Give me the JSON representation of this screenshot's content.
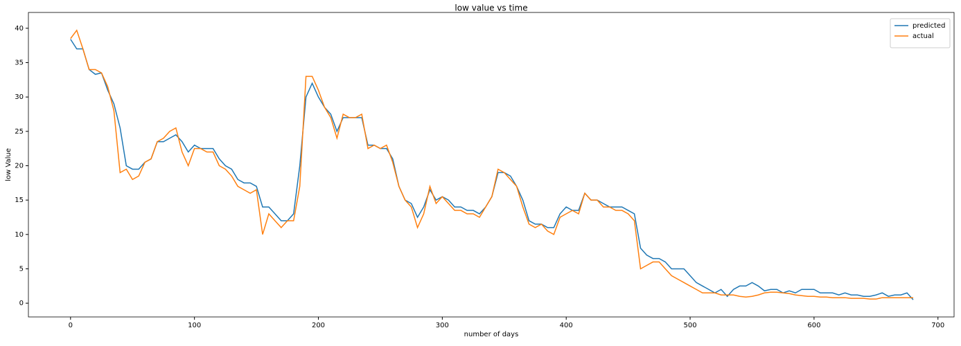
{
  "chart_data": {
    "type": "line",
    "title": "low value vs time",
    "x_label": "number of days",
    "y_label": "low Value",
    "x": [
      0,
      5,
      10,
      15,
      20,
      25,
      30,
      35,
      40,
      45,
      50,
      55,
      60,
      65,
      70,
      75,
      80,
      85,
      90,
      95,
      100,
      105,
      110,
      115,
      120,
      125,
      130,
      135,
      140,
      145,
      150,
      155,
      160,
      165,
      170,
      175,
      180,
      185,
      190,
      195,
      200,
      205,
      210,
      215,
      220,
      225,
      230,
      235,
      240,
      245,
      250,
      255,
      260,
      265,
      270,
      275,
      280,
      285,
      290,
      295,
      300,
      305,
      310,
      315,
      320,
      325,
      330,
      335,
      340,
      345,
      350,
      355,
      360,
      365,
      370,
      375,
      380,
      385,
      390,
      395,
      400,
      405,
      410,
      415,
      420,
      425,
      430,
      435,
      440,
      445,
      450,
      455,
      460,
      465,
      470,
      475,
      480,
      485,
      490,
      495,
      500,
      505,
      510,
      515,
      520,
      525,
      530,
      535,
      540,
      545,
      550,
      555,
      560,
      565,
      570,
      575,
      580,
      585,
      590,
      595,
      600,
      605,
      610,
      615,
      620,
      625,
      630,
      635,
      640,
      645,
      650,
      655,
      660,
      665,
      670,
      675,
      680
    ],
    "series": [
      {
        "name": "predicted",
        "color": "#1f77b4",
        "values": [
          38.4,
          37,
          37,
          34,
          33.3,
          33.5,
          31,
          29,
          25.5,
          20,
          19.5,
          19.5,
          20.5,
          21,
          23.5,
          23.5,
          24,
          24.5,
          23.5,
          22,
          23,
          22.5,
          22.5,
          22.5,
          21,
          20,
          19.5,
          18,
          17.5,
          17.5,
          17,
          14,
          14,
          13,
          12,
          12,
          13,
          20,
          30,
          32,
          30,
          28.5,
          27.5,
          25,
          27,
          27,
          27,
          27,
          23,
          23,
          22.5,
          22.5,
          21,
          17,
          15,
          14.5,
          12.5,
          14,
          16.5,
          15,
          15.5,
          15,
          14,
          14,
          13.5,
          13.5,
          13,
          14,
          15.5,
          19,
          19,
          18.5,
          17,
          15,
          12,
          11.5,
          11.5,
          11,
          11,
          13,
          14,
          13.5,
          13.5,
          16,
          15,
          15,
          14.5,
          14,
          14,
          14,
          13.5,
          13,
          8,
          7,
          6.5,
          6.5,
          6,
          5,
          5,
          5,
          4,
          3,
          2.5,
          2,
          1.5,
          2,
          1,
          2,
          2.5,
          2.5,
          3,
          2.5,
          1.8,
          2,
          2,
          1.5,
          1.8,
          1.5,
          2,
          2,
          2,
          1.5,
          1.5,
          1.5,
          1.2,
          1.5,
          1.2,
          1.2,
          1,
          1,
          1.2,
          1.5,
          1,
          1.2,
          1.2,
          1.5,
          0.5
        ]
      },
      {
        "name": "actual",
        "color": "#ff7f0e",
        "values": [
          38.5,
          39.7,
          37,
          34,
          34,
          33.5,
          31.5,
          28,
          19,
          19.5,
          18,
          18.5,
          20.5,
          21,
          23.5,
          24,
          25,
          25.5,
          22,
          20,
          22.5,
          22.5,
          22,
          22,
          20,
          19.5,
          18.5,
          17,
          16.5,
          16,
          16.5,
          10,
          13,
          12,
          11,
          12,
          12,
          17,
          33,
          33,
          31,
          28.5,
          27,
          24,
          27.5,
          27,
          27,
          27.5,
          22.5,
          23,
          22.5,
          23,
          20.5,
          17,
          15,
          14,
          11,
          13,
          17,
          14.5,
          15.5,
          14.5,
          13.5,
          13.5,
          13,
          13,
          12.5,
          14,
          15.5,
          19.5,
          19,
          18,
          17,
          14,
          11.5,
          11,
          11.5,
          10.5,
          10,
          12.5,
          13,
          13.5,
          13,
          16,
          15,
          15,
          14,
          14,
          13.5,
          13.5,
          13,
          12,
          5,
          5.5,
          6,
          6,
          5,
          4,
          3.5,
          3,
          2.5,
          2,
          1.5,
          1.5,
          1.5,
          1.2,
          1.2,
          1.2,
          1,
          0.9,
          1,
          1.2,
          1.5,
          1.6,
          1.6,
          1.5,
          1.4,
          1.2,
          1.1,
          1,
          1,
          0.9,
          0.9,
          0.8,
          0.8,
          0.8,
          0.7,
          0.7,
          0.7,
          0.6,
          0.6,
          0.8,
          0.8,
          0.8,
          0.8,
          0.8,
          0.8
        ]
      }
    ],
    "xlim": [
      -34,
      713
    ],
    "ylim": [
      -2.0,
      42.3
    ],
    "xticks": [
      0,
      100,
      200,
      300,
      400,
      500,
      600,
      700
    ],
    "yticks": [
      0,
      5,
      10,
      15,
      20,
      25,
      30,
      35,
      40
    ],
    "legend": "upper right",
    "grid": false
  }
}
